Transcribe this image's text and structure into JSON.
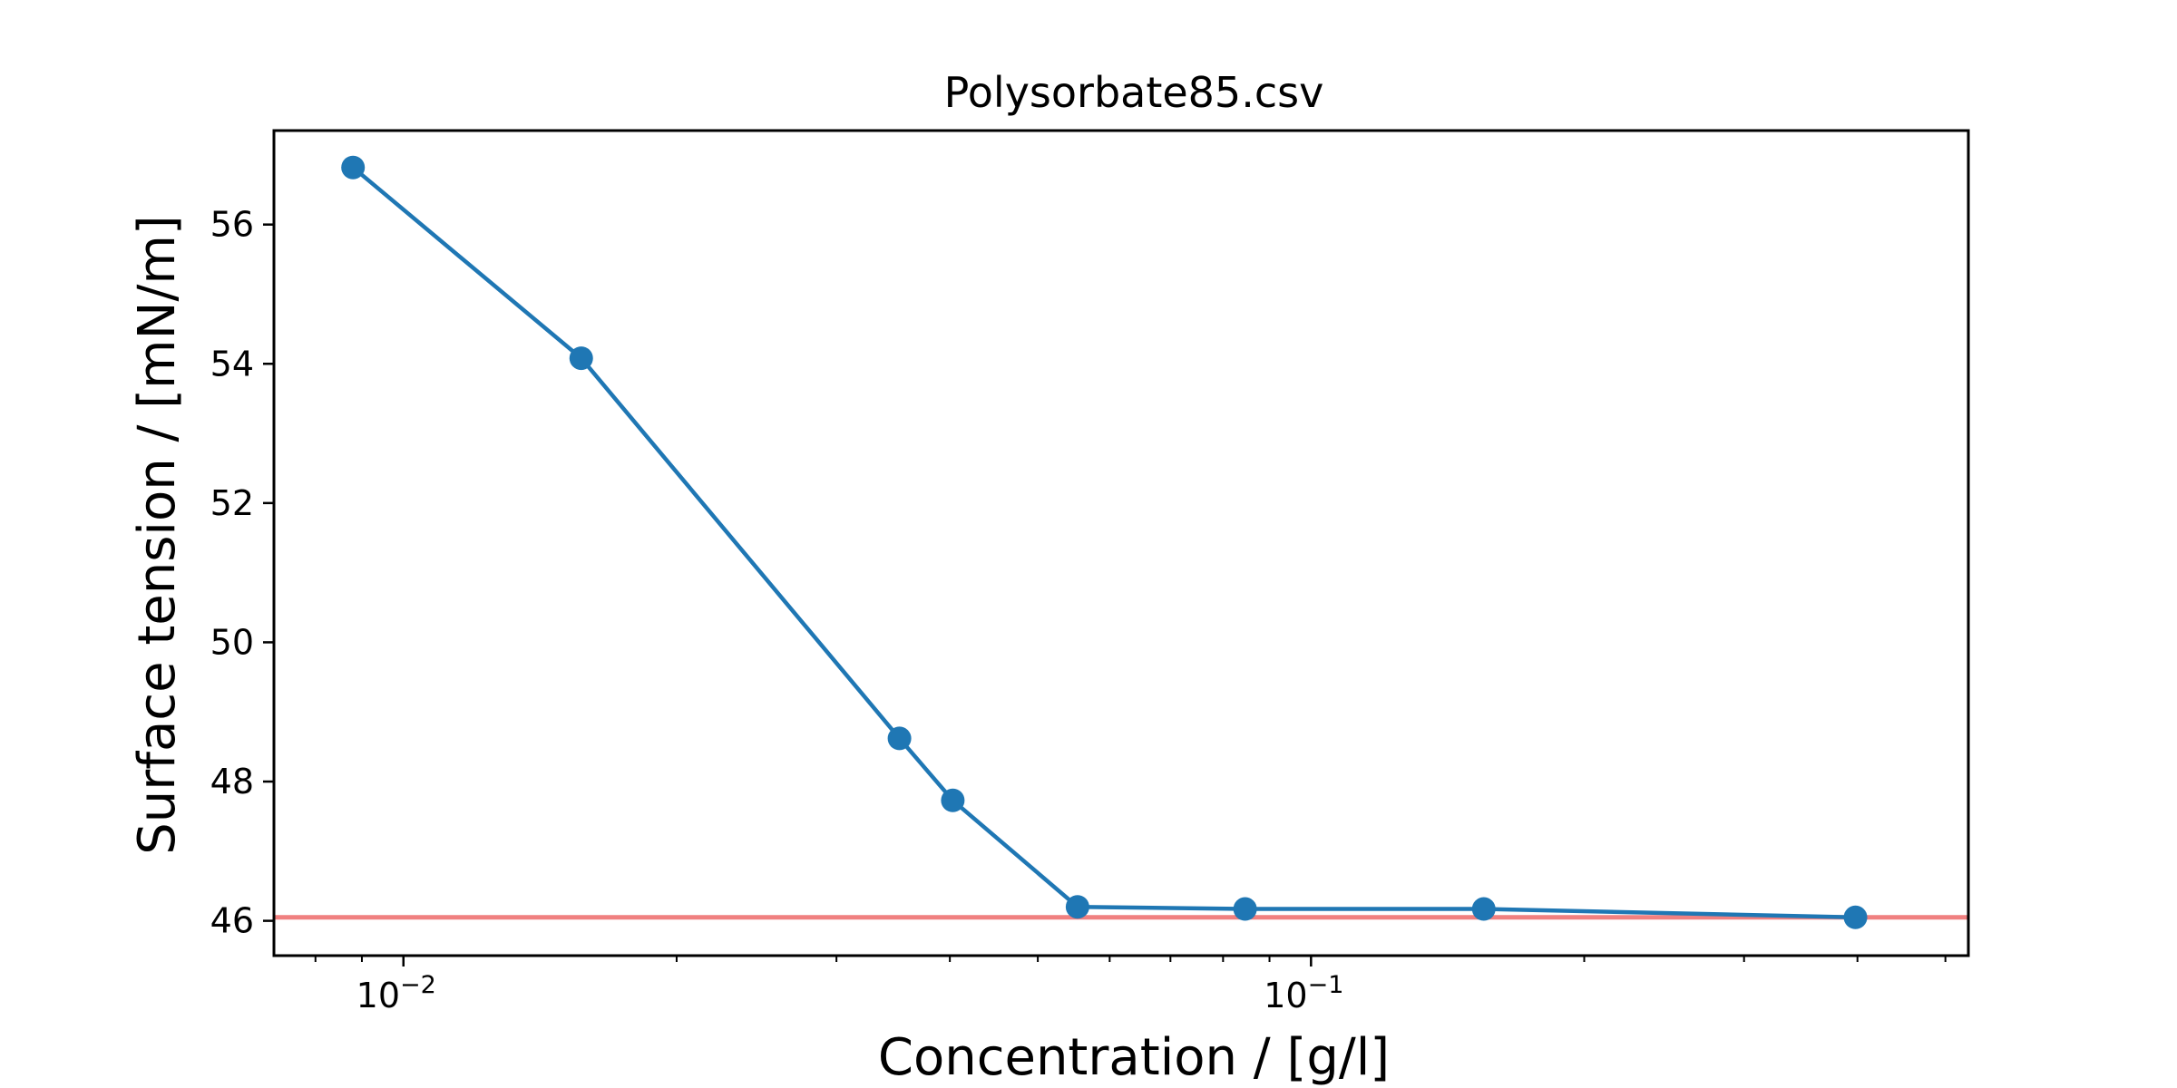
{
  "chart_data": {
    "type": "line",
    "title": "Polysorbate85.csv",
    "xlabel": "Concentration / [g/l]",
    "ylabel": "Surface tension / [mN/m]",
    "x_scale": "log",
    "xlim": [
      0.0072,
      0.53
    ],
    "ylim": [
      45.5,
      57.35
    ],
    "x_ticks_major": [
      {
        "value": 0.01,
        "base": "10",
        "exponent": "−2"
      },
      {
        "value": 0.1,
        "base": "10",
        "exponent": "−1"
      }
    ],
    "y_ticks": [
      "46",
      "48",
      "50",
      "52",
      "54",
      "56"
    ],
    "grid": false,
    "series": [
      {
        "color": "#1f77b4",
        "marker": "circle",
        "x": [
          0.0088,
          0.0157,
          0.0352,
          0.0403,
          0.0553,
          0.0846,
          0.155,
          0.398
        ],
        "y": [
          56.82,
          54.08,
          48.62,
          47.73,
          46.2,
          46.17,
          46.17,
          46.05
        ]
      }
    ],
    "reference_line": {
      "y": 46.05,
      "color": "#f08080"
    }
  }
}
